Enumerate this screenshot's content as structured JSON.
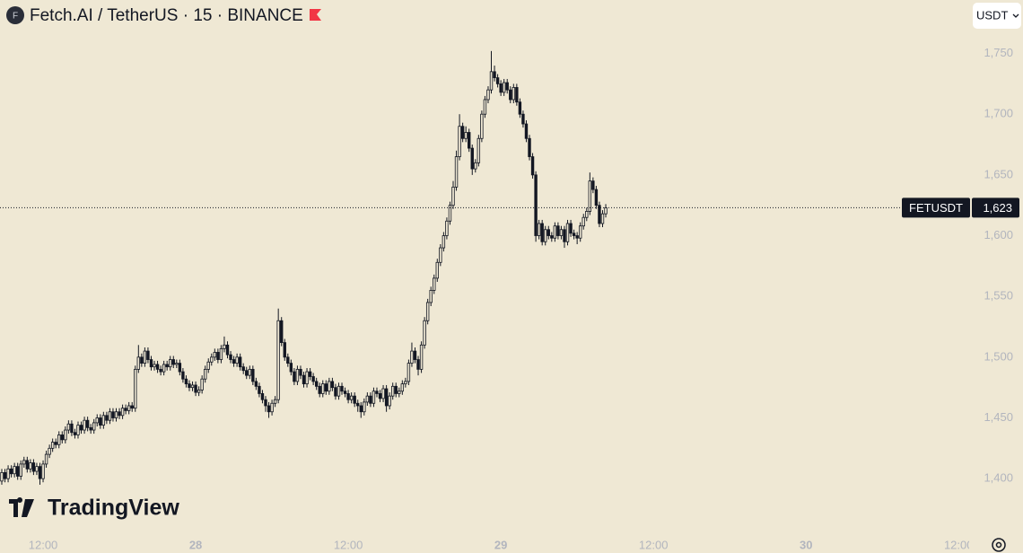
{
  "chart_data": {
    "type": "candlestick",
    "title": "Fetch.AI / TetherUS · 15 · BINANCE",
    "logo": "F",
    "currency": "USDT",
    "watermark": "TradingView",
    "symbol_label": "FETUSDT",
    "last_price": {
      "value": 1623,
      "label": "1,623"
    },
    "color": "#131722",
    "xlim": [
      8.61,
      84.83
    ],
    "ylim": [
      1358,
      1794
    ],
    "xticks": [
      {
        "value": 12,
        "label": "12:00"
      },
      {
        "value": 24,
        "label": "28"
      },
      {
        "value": 36,
        "label": "12:00"
      },
      {
        "value": 48,
        "label": "29"
      },
      {
        "value": 60,
        "label": "12:00"
      },
      {
        "value": 72,
        "label": "30"
      },
      {
        "value": 84,
        "label": "12:00"
      }
    ],
    "yticks": [
      {
        "value": 1400,
        "label": "1,400"
      },
      {
        "value": 1450,
        "label": "1,450"
      },
      {
        "value": 1500,
        "label": "1,500"
      },
      {
        "value": 1550,
        "label": "1,550"
      },
      {
        "value": 1600,
        "label": "1,600"
      },
      {
        "value": 1650,
        "label": "1,650"
      },
      {
        "value": 1700,
        "label": "1,700"
      },
      {
        "value": 1750,
        "label": "1,750"
      }
    ],
    "x": [
      8.75,
      9,
      9.25,
      9.5,
      9.75,
      10,
      10.25,
      10.5,
      10.75,
      11,
      11.25,
      11.5,
      11.75,
      12,
      12.25,
      12.5,
      12.75,
      13,
      13.25,
      13.5,
      13.75,
      14,
      14.25,
      14.5,
      14.75,
      15,
      15.25,
      15.5,
      15.75,
      16,
      16.25,
      16.5,
      16.75,
      17,
      17.25,
      17.5,
      17.75,
      18,
      18.25,
      18.5,
      18.75,
      19,
      19.25,
      19.5,
      19.75,
      20,
      20.25,
      20.5,
      20.75,
      21,
      21.25,
      21.5,
      21.75,
      22,
      22.25,
      22.5,
      22.75,
      23,
      23.25,
      23.5,
      23.75,
      24,
      24.25,
      24.5,
      24.75,
      25,
      25.25,
      25.5,
      25.75,
      26,
      26.25,
      26.5,
      26.75,
      27,
      27.25,
      27.5,
      27.75,
      28,
      28.25,
      28.5,
      28.75,
      29,
      29.25,
      29.5,
      29.75,
      30,
      30.25,
      30.5,
      30.75,
      31,
      31.25,
      31.5,
      31.75,
      32,
      32.25,
      32.5,
      32.75,
      33,
      33.25,
      33.5,
      33.75,
      34,
      34.25,
      34.5,
      34.75,
      35,
      35.25,
      35.5,
      35.75,
      36,
      36.25,
      36.5,
      36.75,
      37,
      37.25,
      37.5,
      37.75,
      38,
      38.25,
      38.5,
      38.75,
      39,
      39.25,
      39.5,
      39.75,
      40,
      40.25,
      40.5,
      40.75,
      41,
      41.25,
      41.5,
      41.75,
      42,
      42.25,
      42.5,
      42.75,
      43,
      43.25,
      43.5,
      43.75,
      44,
      44.25,
      44.5,
      44.75,
      45,
      45.25,
      45.5,
      45.75,
      46,
      46.25,
      46.5,
      46.75,
      47,
      47.25,
      47.5,
      47.75,
      48,
      48.25,
      48.5,
      48.75,
      49,
      49.25,
      49.5,
      49.75,
      50,
      50.25,
      50.5,
      50.75,
      51,
      51.25,
      51.5,
      51.75,
      52,
      52.25,
      52.5,
      52.75,
      53,
      53.25,
      53.5,
      53.75,
      54,
      54.25,
      54.5,
      54.75,
      55,
      55.25,
      55.5,
      55.75,
      56,
      56.25
    ],
    "open": [
      1398,
      1405,
      1400,
      1408,
      1404,
      1410,
      1402,
      1412,
      1415,
      1408,
      1413,
      1406,
      1410,
      1400,
      1412,
      1420,
      1425,
      1430,
      1428,
      1436,
      1432,
      1440,
      1445,
      1438,
      1436,
      1444,
      1440,
      1448,
      1442,
      1440,
      1446,
      1450,
      1444,
      1452,
      1448,
      1455,
      1450,
      1455,
      1452,
      1458,
      1456,
      1460,
      1458,
      1490,
      1500,
      1495,
      1505,
      1498,
      1492,
      1494,
      1490,
      1488,
      1494,
      1492,
      1498,
      1494,
      1495,
      1488,
      1482,
      1478,
      1475,
      1477,
      1471,
      1473,
      1482,
      1490,
      1496,
      1500,
      1504,
      1498,
      1507,
      1510,
      1502,
      1498,
      1495,
      1500,
      1492,
      1489,
      1485,
      1490,
      1480,
      1476,
      1470,
      1465,
      1460,
      1455,
      1462,
      1465,
      1530,
      1512,
      1500,
      1495,
      1488,
      1480,
      1490,
      1485,
      1478,
      1488,
      1484,
      1480,
      1476,
      1470,
      1478,
      1472,
      1480,
      1475,
      1468,
      1476,
      1472,
      1470,
      1465,
      1468,
      1462,
      1460,
      1455,
      1463,
      1468,
      1462,
      1472,
      1470,
      1466,
      1474,
      1460,
      1468,
      1476,
      1470,
      1472,
      1478,
      1480,
      1495,
      1505,
      1498,
      1490,
      1510,
      1530,
      1545,
      1555,
      1565,
      1578,
      1590,
      1600,
      1612,
      1625,
      1640,
      1665,
      1690,
      1680,
      1685,
      1672,
      1655,
      1660,
      1680,
      1700,
      1712,
      1720,
      1735,
      1730,
      1725,
      1718,
      1726,
      1720,
      1712,
      1722,
      1710,
      1700,
      1692,
      1680,
      1665,
      1650,
      1600,
      1610,
      1595,
      1605,
      1600,
      1598,
      1608,
      1600,
      1605,
      1595,
      1610,
      1602,
      1600,
      1598,
      1608,
      1615,
      1620,
      1645,
      1638,
      1625,
      1610,
      1618
    ],
    "high": [
      1408,
      1408,
      1411,
      1411,
      1413,
      1413,
      1415,
      1418,
      1418,
      1416,
      1416,
      1413,
      1413,
      1415,
      1423,
      1428,
      1433,
      1433,
      1439,
      1439,
      1443,
      1448,
      1448,
      1441,
      1447,
      1447,
      1451,
      1451,
      1445,
      1449,
      1453,
      1453,
      1455,
      1455,
      1458,
      1458,
      1458,
      1458,
      1461,
      1461,
      1463,
      1463,
      1493,
      1510,
      1503,
      1508,
      1508,
      1501,
      1497,
      1497,
      1493,
      1497,
      1497,
      1501,
      1501,
      1498,
      1498,
      1491,
      1485,
      1481,
      1480,
      1480,
      1476,
      1485,
      1493,
      1499,
      1503,
      1507,
      1507,
      1510,
      1517,
      1513,
      1505,
      1501,
      1503,
      1503,
      1495,
      1492,
      1493,
      1493,
      1483,
      1479,
      1473,
      1468,
      1463,
      1465,
      1468,
      1540,
      1533,
      1515,
      1503,
      1498,
      1491,
      1493,
      1493,
      1488,
      1491,
      1491,
      1487,
      1483,
      1479,
      1481,
      1481,
      1483,
      1483,
      1478,
      1479,
      1479,
      1475,
      1473,
      1471,
      1471,
      1465,
      1463,
      1466,
      1471,
      1471,
      1475,
      1475,
      1473,
      1477,
      1477,
      1471,
      1479,
      1479,
      1475,
      1481,
      1483,
      1498,
      1512,
      1508,
      1501,
      1513,
      1533,
      1548,
      1558,
      1568,
      1581,
      1593,
      1603,
      1615,
      1628,
      1645,
      1670,
      1700,
      1693,
      1690,
      1688,
      1675,
      1663,
      1683,
      1703,
      1715,
      1723,
      1752,
      1740,
      1733,
      1728,
      1729,
      1729,
      1723,
      1725,
      1725,
      1713,
      1703,
      1695,
      1683,
      1668,
      1653,
      1613,
      1613,
      1608,
      1608,
      1603,
      1611,
      1611,
      1608,
      1608,
      1613,
      1613,
      1605,
      1603,
      1611,
      1618,
      1623,
      1652,
      1648,
      1641,
      1628,
      1621,
      1626
    ],
    "low": [
      1395,
      1397,
      1397,
      1401,
      1401,
      1399,
      1399,
      1409,
      1405,
      1405,
      1403,
      1403,
      1395,
      1397,
      1409,
      1417,
      1422,
      1425,
      1425,
      1429,
      1429,
      1437,
      1435,
      1433,
      1433,
      1437,
      1437,
      1439,
      1437,
      1437,
      1443,
      1441,
      1441,
      1445,
      1445,
      1447,
      1447,
      1449,
      1449,
      1453,
      1453,
      1455,
      1455,
      1487,
      1492,
      1492,
      1495,
      1489,
      1489,
      1487,
      1485,
      1485,
      1489,
      1489,
      1491,
      1491,
      1485,
      1479,
      1475,
      1472,
      1472,
      1468,
      1468,
      1470,
      1479,
      1487,
      1493,
      1497,
      1495,
      1495,
      1504,
      1499,
      1495,
      1492,
      1492,
      1489,
      1486,
      1482,
      1482,
      1477,
      1473,
      1467,
      1462,
      1455,
      1450,
      1452,
      1459,
      1462,
      1509,
      1497,
      1492,
      1485,
      1477,
      1477,
      1482,
      1475,
      1475,
      1481,
      1477,
      1473,
      1467,
      1467,
      1469,
      1469,
      1472,
      1465,
      1465,
      1469,
      1467,
      1462,
      1462,
      1459,
      1455,
      1450,
      1452,
      1460,
      1459,
      1459,
      1467,
      1463,
      1463,
      1455,
      1457,
      1465,
      1467,
      1467,
      1469,
      1475,
      1477,
      1492,
      1495,
      1485,
      1487,
      1507,
      1527,
      1542,
      1552,
      1562,
      1575,
      1587,
      1597,
      1609,
      1622,
      1637,
      1662,
      1677,
      1677,
      1669,
      1650,
      1652,
      1657,
      1677,
      1697,
      1709,
      1717,
      1727,
      1722,
      1715,
      1715,
      1717,
      1709,
      1709,
      1707,
      1697,
      1689,
      1677,
      1662,
      1647,
      1595,
      1597,
      1592,
      1592,
      1597,
      1595,
      1595,
      1597,
      1597,
      1590,
      1592,
      1599,
      1597,
      1593,
      1595,
      1605,
      1612,
      1617,
      1635,
      1622,
      1607,
      1607,
      1615
    ],
    "close": [
      1405,
      1400,
      1408,
      1404,
      1410,
      1402,
      1412,
      1415,
      1408,
      1413,
      1406,
      1410,
      1400,
      1412,
      1420,
      1425,
      1430,
      1428,
      1436,
      1432,
      1440,
      1445,
      1438,
      1436,
      1444,
      1440,
      1448,
      1442,
      1440,
      1446,
      1450,
      1444,
      1452,
      1448,
      1455,
      1450,
      1455,
      1452,
      1458,
      1456,
      1460,
      1458,
      1490,
      1500,
      1495,
      1505,
      1498,
      1492,
      1494,
      1490,
      1488,
      1494,
      1492,
      1498,
      1494,
      1495,
      1488,
      1482,
      1478,
      1475,
      1477,
      1471,
      1473,
      1482,
      1490,
      1496,
      1500,
      1504,
      1498,
      1507,
      1510,
      1502,
      1498,
      1495,
      1500,
      1492,
      1489,
      1485,
      1490,
      1480,
      1476,
      1470,
      1465,
      1460,
      1455,
      1462,
      1465,
      1530,
      1512,
      1500,
      1495,
      1488,
      1480,
      1490,
      1485,
      1478,
      1488,
      1484,
      1480,
      1476,
      1470,
      1478,
      1472,
      1480,
      1475,
      1468,
      1476,
      1472,
      1470,
      1465,
      1468,
      1462,
      1460,
      1455,
      1463,
      1468,
      1462,
      1472,
      1470,
      1466,
      1474,
      1460,
      1468,
      1476,
      1470,
      1472,
      1478,
      1480,
      1495,
      1505,
      1498,
      1490,
      1510,
      1530,
      1545,
      1555,
      1565,
      1578,
      1590,
      1600,
      1612,
      1625,
      1640,
      1665,
      1690,
      1680,
      1685,
      1672,
      1655,
      1660,
      1680,
      1700,
      1712,
      1720,
      1735,
      1730,
      1725,
      1718,
      1726,
      1720,
      1712,
      1722,
      1710,
      1700,
      1692,
      1680,
      1665,
      1650,
      1600,
      1610,
      1595,
      1605,
      1600,
      1598,
      1608,
      1600,
      1605,
      1595,
      1610,
      1602,
      1600,
      1598,
      1608,
      1615,
      1620,
      1645,
      1638,
      1625,
      1610,
      1618,
      1623
    ]
  }
}
